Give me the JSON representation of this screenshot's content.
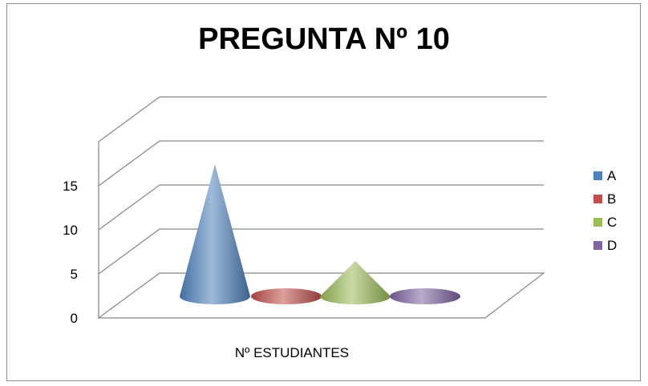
{
  "chart_data": {
    "type": "bar",
    "bar_shape": "cone-3d",
    "title": "PREGUNTA Nº 10",
    "categories": [
      "Nº ESTUDIANTES"
    ],
    "series": [
      {
        "name": "A",
        "values": [
          15
        ],
        "color": "#4f81bd"
      },
      {
        "name": "B",
        "values": [
          0
        ],
        "color": "#c0504d"
      },
      {
        "name": "C",
        "values": [
          4
        ],
        "color": "#9bbb59"
      },
      {
        "name": "D",
        "values": [
          0
        ],
        "color": "#8064a2"
      }
    ],
    "y_ticks": [
      "0",
      "5",
      "10",
      "15"
    ],
    "ylim": [
      0,
      20
    ],
    "grid": true,
    "legend_position": "right"
  }
}
